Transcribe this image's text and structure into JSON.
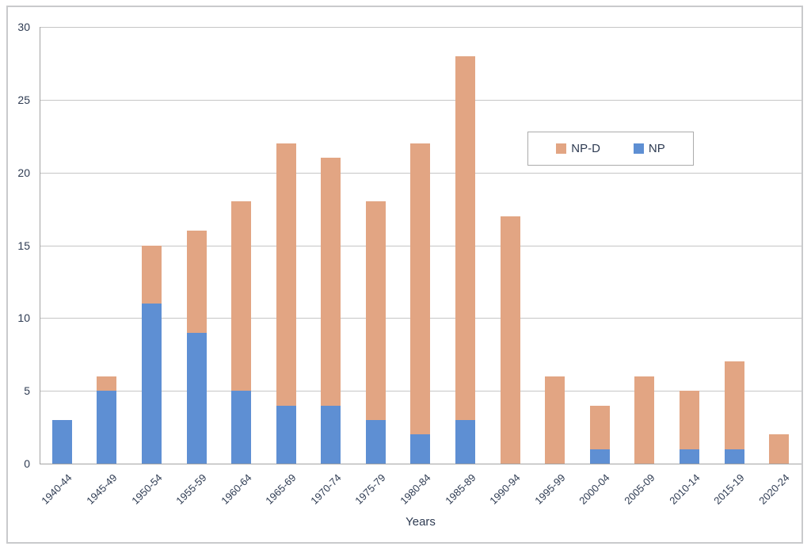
{
  "chart_data": {
    "type": "bar",
    "stacked": true,
    "title": "",
    "xlabel": "Years",
    "ylabel": "",
    "categories": [
      "1940-44",
      "1945-49",
      "1950-54",
      "1955-59",
      "1960-64",
      "1965-69",
      "1970-74",
      "1975-79",
      "1980-84",
      "1985-89",
      "1990-94",
      "1995-99",
      "2000-04",
      "2005-09",
      "2010-14",
      "2015-19",
      "2020-24"
    ],
    "series": [
      {
        "name": "NP",
        "color": "#5e8fd3",
        "values": [
          3,
          5,
          11,
          9,
          5,
          4,
          4,
          3,
          2,
          3,
          0,
          0,
          1,
          0,
          1,
          1,
          0
        ]
      },
      {
        "name": "NP-D",
        "color": "#e2a583",
        "values": [
          0,
          1,
          4,
          7,
          13,
          18,
          17,
          15,
          20,
          25,
          17,
          6,
          3,
          6,
          4,
          6,
          2
        ]
      }
    ],
    "totals": [
      3,
      6,
      15,
      16,
      18,
      22,
      21,
      18,
      22,
      28,
      17,
      6,
      4,
      6,
      5,
      7,
      2
    ],
    "ylim": [
      0,
      30
    ],
    "yticks": [
      0,
      5,
      10,
      15,
      20,
      25,
      30
    ],
    "grid": true,
    "legend": {
      "position": "inside-top-right",
      "entries": [
        "NP-D",
        "NP"
      ]
    }
  },
  "ui": {
    "colors": {
      "np_blue": "#5e8fd3",
      "npd_orange": "#e2a583",
      "text": "#2e3b52",
      "gridline": "#c6c6c6",
      "axis": "#a3a3a3",
      "frame_border": "#c9cacc",
      "legend_border": "#ababab",
      "background": "#ffffff"
    }
  }
}
